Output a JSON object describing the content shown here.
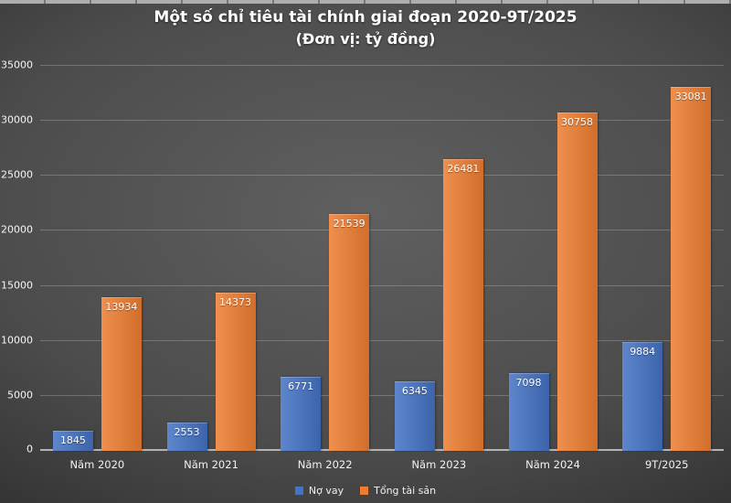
{
  "title": {
    "line1": "Một số chỉ tiêu tài chính giai đoạn 2020-9T/2025",
    "line2": "(Đơn vị: tỷ đồng)"
  },
  "colors": {
    "background_center": "#606060",
    "background_edge": "#2a2a2a",
    "gridline": "rgba(255,255,255,0.22)",
    "axis_line": "#b4b4b4",
    "text": "#ffffff",
    "series_blue": "#4472C4",
    "series_orange": "#ED7D31"
  },
  "chart_data": {
    "type": "bar",
    "title": "Một số chỉ tiêu tài chính giai đoạn 2020-9T/2025",
    "subtitle": "(Đơn vị: tỷ đồng)",
    "categories": [
      "Năm 2020",
      "Năm 2021",
      "Năm 2022",
      "Năm 2023",
      "Năm 2024",
      "9T/2025"
    ],
    "series": [
      {
        "name": "Nợ vay",
        "color": "#4472C4",
        "values": [
          1845,
          2553,
          6771,
          6345,
          7098,
          9884
        ]
      },
      {
        "name": "Tổng tài sản",
        "color": "#ED7D31",
        "values": [
          13934,
          14373,
          21539,
          26481,
          30758,
          33081
        ]
      }
    ],
    "ylim": [
      0,
      35000
    ],
    "ytick_step": 5000,
    "ytick_labels": [
      "0",
      "5000",
      "10000",
      "15000",
      "20000",
      "25000",
      "30000",
      "35000"
    ],
    "grid": "horizontal-only",
    "legend_position": "bottom",
    "data_labels": "inside-top-white"
  }
}
